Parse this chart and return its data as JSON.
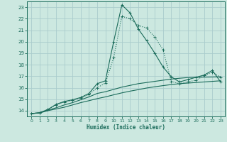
{
  "bg_color": "#cce8e0",
  "grid_color": "#aacccc",
  "line_color": "#1a6b5a",
  "xlabel": "Humidex (Indice chaleur)",
  "xlim": [
    -0.5,
    23.5
  ],
  "ylim": [
    13.5,
    23.5
  ],
  "yticks": [
    14,
    15,
    16,
    17,
    18,
    19,
    20,
    21,
    22,
    23
  ],
  "xticks": [
    0,
    1,
    2,
    3,
    4,
    5,
    6,
    7,
    8,
    9,
    10,
    11,
    12,
    13,
    14,
    15,
    16,
    17,
    18,
    19,
    20,
    21,
    22,
    23
  ],
  "line1_x": [
    0,
    1,
    2,
    3,
    4,
    5,
    6,
    7,
    8,
    9,
    10,
    11,
    12,
    13,
    14,
    15,
    16,
    17,
    18,
    19,
    20,
    21,
    22,
    23
  ],
  "line1_y": [
    13.75,
    13.82,
    14.1,
    14.55,
    14.8,
    14.95,
    15.15,
    15.5,
    16.35,
    16.6,
    20.0,
    23.2,
    22.5,
    21.1,
    20.1,
    19.0,
    17.8,
    16.95,
    16.5,
    16.7,
    16.9,
    17.1,
    17.5,
    16.5
  ],
  "line2_x": [
    0,
    1,
    2,
    3,
    4,
    5,
    6,
    7,
    8,
    9,
    10,
    11,
    12,
    13,
    14,
    15,
    16,
    17,
    18,
    19,
    20,
    21,
    22,
    23
  ],
  "line2_y": [
    13.75,
    13.82,
    14.1,
    14.5,
    14.75,
    14.9,
    15.1,
    15.4,
    16.0,
    16.4,
    18.6,
    22.2,
    22.0,
    21.4,
    21.2,
    20.4,
    19.3,
    16.55,
    16.35,
    16.5,
    16.65,
    17.05,
    17.35,
    16.9
  ],
  "line3_x": [
    0,
    1,
    2,
    3,
    4,
    5,
    6,
    7,
    8,
    9,
    10,
    11,
    12,
    13,
    14,
    15,
    16,
    17,
    18,
    19,
    20,
    21,
    22,
    23
  ],
  "line3_y": [
    13.75,
    13.82,
    14.05,
    14.25,
    14.5,
    14.7,
    14.95,
    15.2,
    15.5,
    15.65,
    15.85,
    16.05,
    16.2,
    16.35,
    16.45,
    16.55,
    16.65,
    16.75,
    16.82,
    16.88,
    16.9,
    16.92,
    16.93,
    16.95
  ],
  "line4_x": [
    0,
    1,
    2,
    3,
    4,
    5,
    6,
    7,
    8,
    9,
    10,
    11,
    12,
    13,
    14,
    15,
    16,
    17,
    18,
    19,
    20,
    21,
    22,
    23
  ],
  "line4_y": [
    13.75,
    13.8,
    14.0,
    14.15,
    14.3,
    14.5,
    14.7,
    14.87,
    15.05,
    15.2,
    15.38,
    15.55,
    15.7,
    15.83,
    15.97,
    16.08,
    16.18,
    16.27,
    16.35,
    16.4,
    16.45,
    16.5,
    16.55,
    16.6
  ]
}
